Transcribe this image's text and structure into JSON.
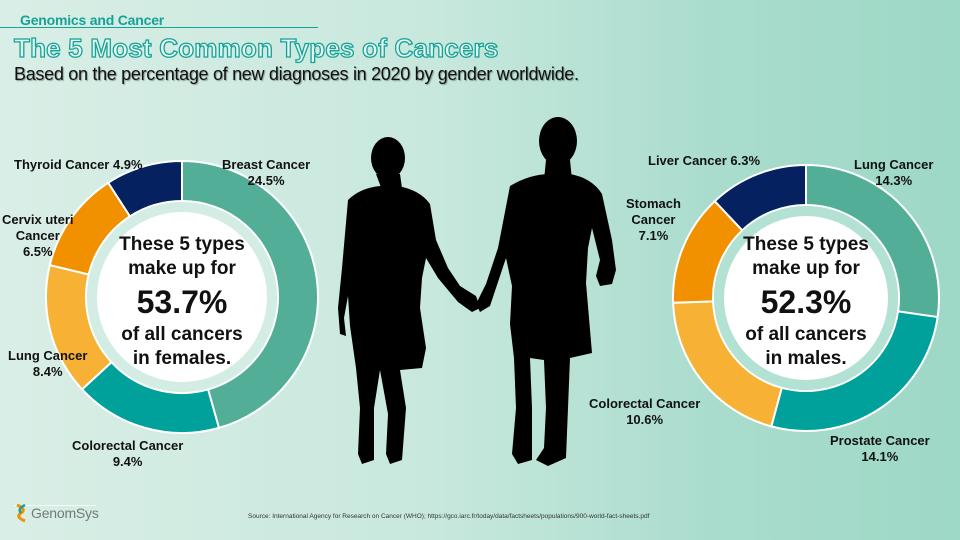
{
  "header": {
    "kicker": "Genomics and Cancer",
    "title": "The 5 Most Common Types of Cancers",
    "subtitle": "Based on the percentage of new diagnoses in 2020 by gender worldwide."
  },
  "colors": {
    "teal_light": "#53ae98",
    "teal_dark": "#00a19a",
    "orange_light": "#f7b235",
    "orange_dark": "#f29100",
    "navy": "#05215f",
    "accent": "#14a396"
  },
  "female": {
    "center_line1": "These 5 types",
    "center_line2": "make up for",
    "center_total": "53.7%",
    "center_line3": "of all cancers",
    "center_line4": "in females.",
    "labels": {
      "breast": {
        "name": "Breast Cancer",
        "value": "24.5%"
      },
      "colorectal": {
        "name": "Colorectal Cancer",
        "value": "9.4%"
      },
      "lung": {
        "name": "Lung Cancer",
        "value": "8.4%"
      },
      "cervix": {
        "name_1": "Cervix uteri",
        "name_2": "Cancer",
        "value": "6.5%"
      },
      "thyroid": {
        "name": "Thyroid Cancer 4.9%"
      }
    }
  },
  "male": {
    "center_line1": "These 5 types",
    "center_line2": "make up for",
    "center_total": "52.3%",
    "center_line3": "of all cancers",
    "center_line4": "in males.",
    "labels": {
      "lung": {
        "name": "Lung Cancer",
        "value": "14.3%"
      },
      "prostate": {
        "name": "Prostate Cancer",
        "value": "14.1%"
      },
      "colorectal": {
        "name": "Colorectal Cancer",
        "value": "10.6%"
      },
      "stomach": {
        "name_1": "Stomach",
        "name_2": "Cancer",
        "value": "7.1%"
      },
      "liver": {
        "name": "Liver Cancer 6.3%"
      }
    }
  },
  "footer": {
    "source": "Source: International Agency for Research on Cancer (WHO);  https://gco.iarc.fr/today/data/factsheets/populations/900-world-fact-sheets.pdf",
    "logo_text": "GenomSys"
  },
  "chart_data": [
    {
      "type": "pie",
      "title": "These 5 types make up for 53.7% of all cancers in females.",
      "subtype": "donut",
      "categories": [
        "Breast Cancer",
        "Colorectal Cancer",
        "Lung Cancer",
        "Cervix uteri Cancer",
        "Thyroid Cancer"
      ],
      "values": [
        24.5,
        9.4,
        8.4,
        6.5,
        4.9
      ],
      "colors": [
        "#53ae98",
        "#00a19a",
        "#f7b235",
        "#f29100",
        "#05215f"
      ],
      "total": 53.7,
      "unit": "%"
    },
    {
      "type": "pie",
      "title": "These 5 types make up for 52.3% of all cancers in males.",
      "subtype": "donut",
      "categories": [
        "Lung Cancer",
        "Prostate Cancer",
        "Colorectal Cancer",
        "Stomach Cancer",
        "Liver Cancer"
      ],
      "values": [
        14.3,
        14.1,
        10.6,
        7.1,
        6.3
      ],
      "colors": [
        "#53ae98",
        "#00a19a",
        "#f7b235",
        "#f29100",
        "#05215f"
      ],
      "total": 52.3,
      "unit": "%"
    }
  ]
}
